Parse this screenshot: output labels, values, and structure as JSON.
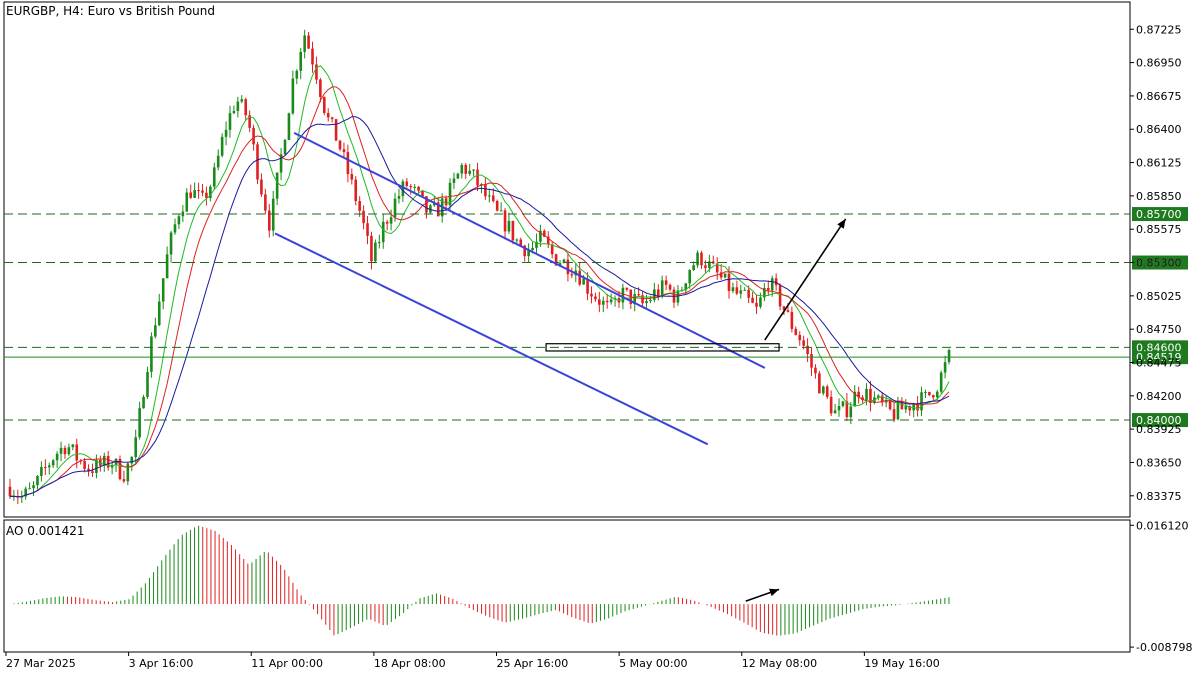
{
  "header": {
    "symbol_line": "EURGBP, H4:  Euro vs British Pound",
    "ao_label": "AO 0.001421"
  },
  "colors": {
    "bull": "#1a8a1a",
    "bear": "#e02020",
    "ma_fast": "#22bb22",
    "ma_mid": "#dd2222",
    "ma_slow": "#1a1aa0",
    "channel": "#3b44d8",
    "level_line": "#1b6b1b",
    "level_badge": "#1e7a1e",
    "grid": "#000000",
    "current_price_line": "#1a8a1a"
  },
  "chart_data": [
    {
      "type": "candlestick",
      "title": "EURGBP, H4:  Euro vs British Pound",
      "ylim": [
        0.832,
        0.8745
      ],
      "y_ticks": [
        "0.87225",
        "0.86950",
        "0.86675",
        "0.86400",
        "0.86125",
        "0.85850",
        "0.85575",
        "0.85300",
        "0.85025",
        "0.84750",
        "0.84475",
        "0.84200",
        "0.83925",
        "0.83650",
        "0.83375"
      ],
      "x_labels": [
        "27 Mar 2025",
        "3 Apr 16:00",
        "11 Apr 00:00",
        "18 Apr 08:00",
        "25 Apr 16:00",
        "5 May 00:00",
        "12 May 08:00",
        "19 May 16:00"
      ],
      "current_price": "0.84519",
      "horizontal_levels": [
        {
          "value": 0.857,
          "label": "0.85700"
        },
        {
          "value": 0.853,
          "label": "0.85300"
        },
        {
          "value": 0.846,
          "label": "0.84600"
        },
        {
          "value": 0.84,
          "label": "0.84000"
        }
      ],
      "price_path": [
        0.8345,
        0.8336,
        0.8342,
        0.8358,
        0.8372,
        0.838,
        0.8368,
        0.836,
        0.8362,
        0.8366,
        0.8355,
        0.8372,
        0.844,
        0.849,
        0.854,
        0.8575,
        0.859,
        0.858,
        0.86,
        0.864,
        0.8665,
        0.865,
        0.86,
        0.856,
        0.862,
        0.868,
        0.872,
        0.869,
        0.865,
        0.863,
        0.86,
        0.857,
        0.853,
        0.856,
        0.858,
        0.8595,
        0.8585,
        0.857,
        0.8575,
        0.859,
        0.861,
        0.86,
        0.8585,
        0.857,
        0.856,
        0.8545,
        0.854,
        0.855,
        0.8535,
        0.853,
        0.8525,
        0.851,
        0.85,
        0.849,
        0.8505,
        0.85,
        0.8495,
        0.8505,
        0.851,
        0.85,
        0.8525,
        0.8535,
        0.8525,
        0.8515,
        0.8505,
        0.85,
        0.849,
        0.8515,
        0.85,
        0.848,
        0.8465,
        0.844,
        0.842,
        0.8405,
        0.841,
        0.8425,
        0.842,
        0.8412,
        0.8405,
        0.841,
        0.8415,
        0.8418,
        0.843,
        0.8452
      ],
      "moving_averages": [
        {
          "name": "",
          "color_key": "ma_fast",
          "period": 8
        },
        {
          "name": "",
          "color_key": "ma_mid",
          "period": 13
        },
        {
          "name": "",
          "color_key": "ma_slow",
          "period": 21
        }
      ],
      "channel": {
        "upper": [
          {
            "t": 0.305,
            "v": 0.8637
          },
          {
            "t": 0.8,
            "v": 0.8443
          }
        ],
        "lower": [
          {
            "t": 0.285,
            "v": 0.8554
          },
          {
            "t": 0.74,
            "v": 0.838
          }
        ]
      },
      "box_zone": {
        "t0": 0.57,
        "t1": 0.815,
        "v0": 0.8457,
        "v1": 0.8463
      },
      "arrow": {
        "from": {
          "t": 0.8,
          "v": 0.8466
        },
        "to": {
          "t": 0.885,
          "v": 0.8566
        }
      }
    },
    {
      "type": "bar",
      "title": "AO 0.001421",
      "ylim": [
        -0.0098,
        0.0172
      ],
      "y_ticks": [
        "0.016120",
        "-0.008798"
      ],
      "ao_path": [
        0.0,
        0.0005,
        0.0012,
        0.0016,
        0.0014,
        0.0008,
        0.0004,
        0.001,
        0.0045,
        0.0095,
        0.014,
        0.0161,
        0.015,
        0.012,
        0.008,
        0.011,
        0.0075,
        0.002,
        -0.002,
        -0.0065,
        -0.0048,
        -0.003,
        -0.0045,
        -0.002,
        0.0012,
        0.0022,
        0.001,
        -0.001,
        -0.0026,
        -0.0038,
        -0.003,
        -0.002,
        -0.0012,
        -0.0028,
        -0.004,
        -0.003,
        -0.0015,
        -0.0005,
        0.0005,
        0.0015,
        0.0008,
        -0.0005,
        -0.002,
        -0.0038,
        -0.0058,
        -0.0065,
        -0.006,
        -0.0045,
        -0.003,
        -0.002,
        -0.001,
        -0.0005,
        -0.0002,
        0.0003,
        0.0008,
        0.0014
      ],
      "arrow": {
        "from": {
          "t": 0.78,
          "v": 0.0006
        },
        "to": {
          "t": 0.815,
          "v": 0.003
        }
      }
    }
  ]
}
